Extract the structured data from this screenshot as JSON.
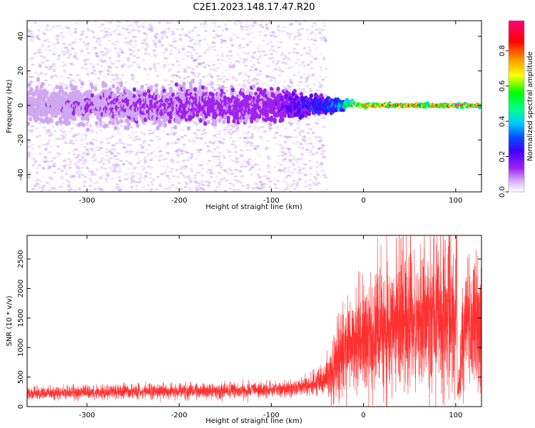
{
  "title": "C2E1.2023.148.17.47.R20",
  "chart_data": [
    {
      "type": "heatmap",
      "xlabel": "Height of straight line (km)",
      "ylabel": "Frequency (Hz)",
      "xlim": [
        -365,
        128
      ],
      "ylim": [
        -50,
        49
      ],
      "xticks": [
        -300,
        -200,
        -100,
        0,
        100
      ],
      "yticks": [
        -40,
        -20,
        0,
        20,
        40
      ],
      "colorbar": {
        "label": "Normalized spectral amplitude",
        "range": [
          0,
          0.97
        ],
        "ticks": [
          0.0,
          0.2,
          0.4,
          0.6,
          0.8
        ],
        "colormap": [
          "#ffffff",
          "#cfa8f0",
          "#a020f0",
          "#5000ff",
          "#0040ff",
          "#00c0ff",
          "#00ff80",
          "#00ff00",
          "#ffff00",
          "#ff8000",
          "#ff0000",
          "#ff0080"
        ]
      },
      "description_points": [
        {
          "x": -365,
          "peak_freq": 0,
          "spread_hz": 10,
          "amplitude": 0.12
        },
        {
          "x": -300,
          "peak_freq": 0,
          "spread_hz": 10,
          "amplitude": 0.15
        },
        {
          "x": -200,
          "peak_freq": 0,
          "spread_hz": 10,
          "amplitude": 0.18
        },
        {
          "x": -100,
          "peak_freq": 0,
          "spread_hz": 9,
          "amplitude": 0.22
        },
        {
          "x": -60,
          "peak_freq": 0,
          "spread_hz": 6,
          "amplitude": 0.35
        },
        {
          "x": -30,
          "peak_freq": 0,
          "spread_hz": 3,
          "amplitude": 0.45
        },
        {
          "x": -10,
          "peak_freq": 1,
          "spread_hz": 1.5,
          "amplitude": 0.8
        },
        {
          "x": 0,
          "peak_freq": 0,
          "spread_hz": 1,
          "amplitude": 0.9
        },
        {
          "x": 100,
          "peak_freq": 0,
          "spread_hz": 1,
          "amplitude": 0.9
        },
        {
          "x": 128,
          "peak_freq": 0,
          "spread_hz": 1,
          "amplitude": 0.9
        }
      ]
    },
    {
      "type": "line",
      "xlabel": "Height of straight line (km)",
      "ylabel": "SNR (10 * v/v)",
      "xlim": [
        -365,
        128
      ],
      "ylim": [
        0,
        2900
      ],
      "xticks": [
        -300,
        -200,
        -100,
        0,
        100
      ],
      "yticks": [
        0,
        500,
        1000,
        1500,
        2000,
        2500
      ],
      "color": "#ff3030",
      "series": [
        {
          "x": [
            -365,
            -300,
            -250,
            -200,
            -150,
            -100,
            -80,
            -60,
            -45,
            -35,
            -25,
            -15,
            -5,
            5,
            15,
            25,
            40,
            60,
            80,
            95,
            100,
            101,
            102,
            110,
            128
          ],
          "y": [
            220,
            240,
            260,
            270,
            270,
            280,
            300,
            350,
            450,
            600,
            800,
            1000,
            1150,
            1250,
            1320,
            1400,
            1450,
            1480,
            1520,
            1600,
            1350,
            2800,
            200,
            1400,
            1450
          ]
        }
      ]
    }
  ]
}
